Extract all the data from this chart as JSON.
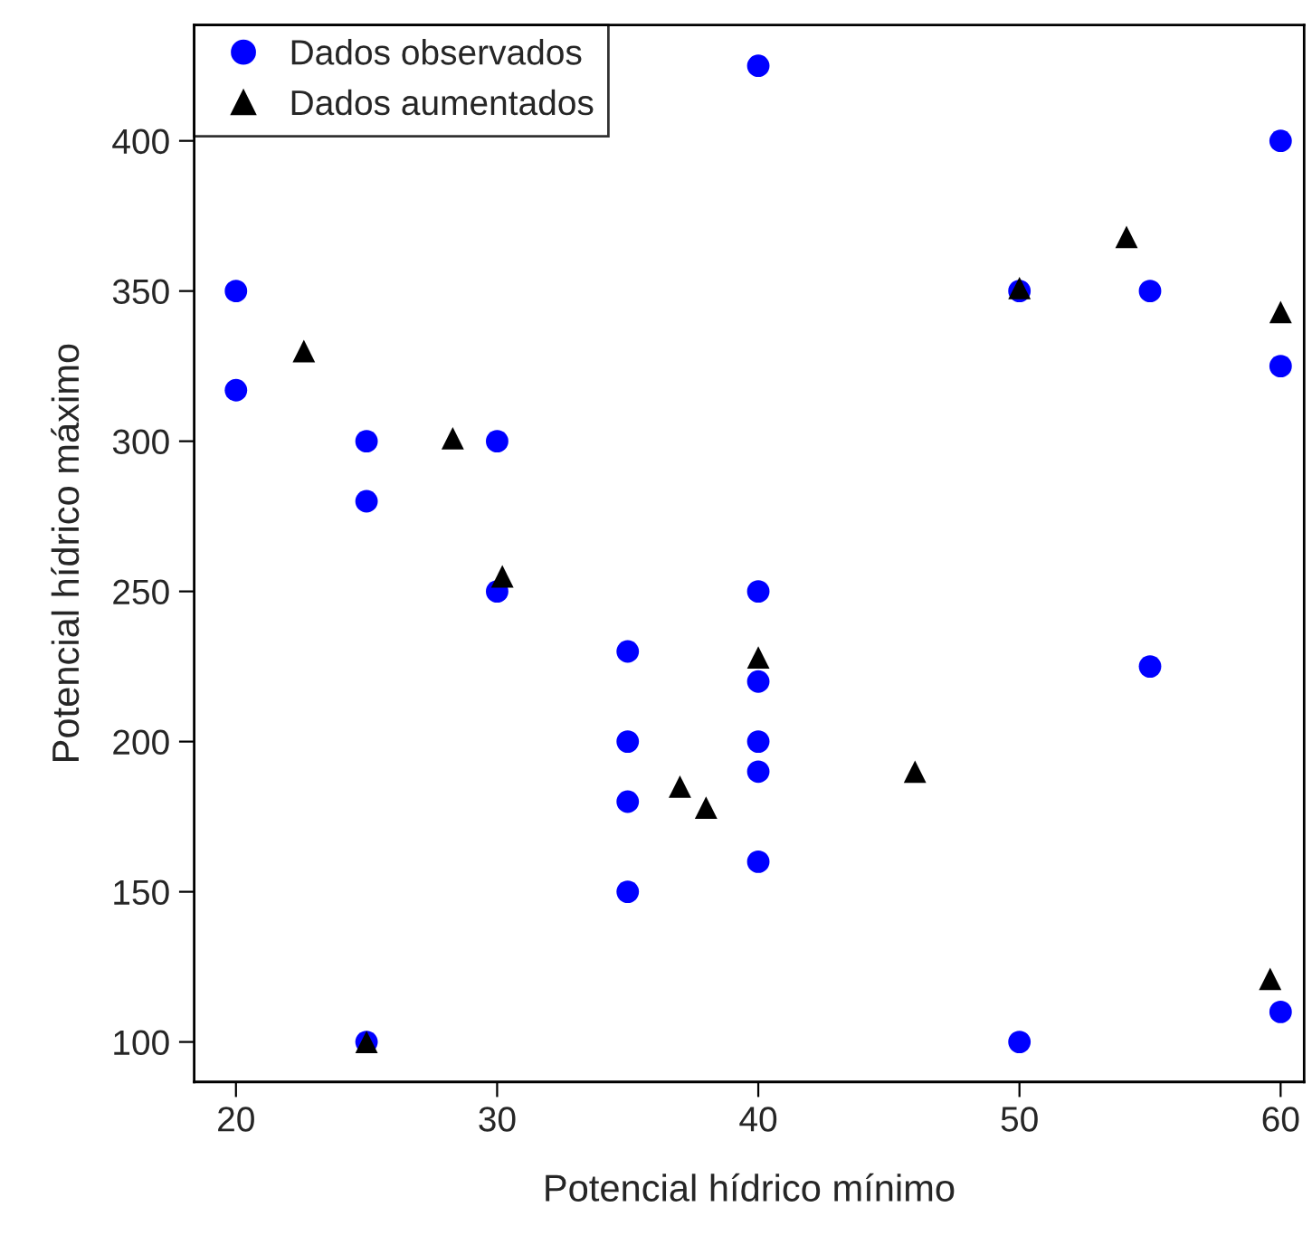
{
  "chart_data": {
    "type": "scatter",
    "xlabel": "Potencial hídrico mínimo",
    "ylabel": "Potencial hídrico máximo",
    "xlim": [
      18.4,
      60.9
    ],
    "ylim": [
      86.7,
      438.6
    ],
    "xticks": [
      20,
      30,
      40,
      50,
      60
    ],
    "yticks": [
      100,
      150,
      200,
      250,
      300,
      350,
      400
    ],
    "grid": false,
    "legend": "top left",
    "series": [
      {
        "name": "Dados observados",
        "color": "#0000ff",
        "marker": "circle",
        "x": [
          20,
          20,
          25,
          25,
          25,
          30,
          30,
          35,
          35,
          35,
          35,
          40,
          40,
          40,
          40,
          40,
          40,
          50,
          50,
          55,
          55,
          60,
          60,
          60
        ],
        "values": [
          350,
          317,
          300,
          280,
          100,
          300,
          250,
          230,
          200,
          180,
          150,
          425,
          250,
          220,
          200,
          190,
          160,
          350,
          100,
          350,
          225,
          400,
          325,
          110
        ]
      },
      {
        "name": "Dados aumentados",
        "color": "#000000",
        "marker": "triangle",
        "x": [
          22.6,
          25,
          28.3,
          30.2,
          37,
          38,
          40,
          46,
          50,
          54.1,
          59.6,
          60
        ],
        "values": [
          330,
          100,
          301,
          255,
          185,
          178,
          228,
          190,
          351,
          368,
          121,
          343
        ]
      }
    ]
  }
}
